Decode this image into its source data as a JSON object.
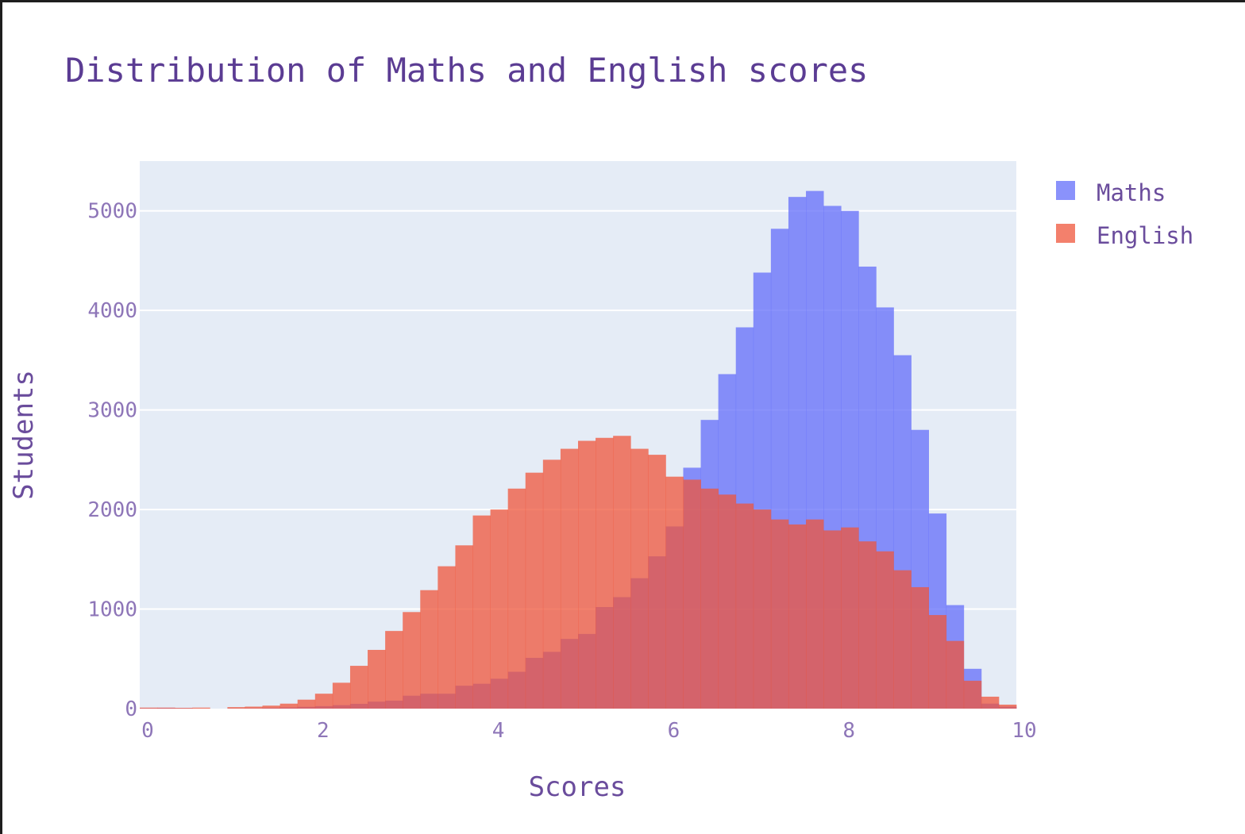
{
  "chart_data": {
    "type": "histogram",
    "title": "Distribution of Maths and English scores",
    "xlabel": "Scores",
    "ylabel": "Students",
    "xlim": [
      0,
      10
    ],
    "ylim": [
      0,
      5500
    ],
    "x_ticks": [
      "0",
      "2",
      "4",
      "6",
      "8",
      "10"
    ],
    "x_tick_values": [
      0,
      2,
      4,
      6,
      8,
      10
    ],
    "y_ticks": [
      "0",
      "1000",
      "2000",
      "3000",
      "4000",
      "5000"
    ],
    "y_tick_values": [
      0,
      1000,
      2000,
      3000,
      4000,
      5000
    ],
    "bin_width": 0.2,
    "bin_starts": [
      0,
      0.2,
      0.4,
      0.6,
      0.8,
      1.0,
      1.2,
      1.4,
      1.6,
      1.8,
      2.0,
      2.2,
      2.4,
      2.6,
      2.8,
      3.0,
      3.2,
      3.4,
      3.6,
      3.8,
      4.0,
      4.2,
      4.4,
      4.6,
      4.8,
      5.0,
      5.2,
      5.4,
      5.6,
      5.8,
      6.0,
      6.2,
      6.4,
      6.6,
      6.8,
      7.0,
      7.2,
      7.4,
      7.6,
      7.8,
      8.0,
      8.2,
      8.4,
      8.6,
      8.8,
      9.0,
      9.2,
      9.4,
      9.6,
      9.8
    ],
    "grid": true,
    "barmode": "overlay",
    "legend_position": "top-right",
    "background": "#e5ecf6",
    "series": [
      {
        "name": "Maths",
        "color": "#636efa",
        "values": [
          5,
          8,
          5,
          0,
          0,
          2,
          4,
          8,
          12,
          18,
          25,
          35,
          48,
          70,
          80,
          130,
          150,
          150,
          230,
          250,
          300,
          370,
          510,
          570,
          700,
          750,
          1020,
          1120,
          1310,
          1530,
          1830,
          2420,
          2900,
          3360,
          3830,
          4380,
          4820,
          5140,
          5200,
          5050,
          5000,
          4440,
          4030,
          3550,
          2800,
          1960,
          1040,
          400,
          50,
          20
        ]
      },
      {
        "name": "English",
        "color": "#ef553b",
        "values": [
          10,
          10,
          8,
          10,
          0,
          15,
          20,
          30,
          50,
          90,
          150,
          260,
          430,
          590,
          780,
          970,
          1190,
          1430,
          1640,
          1940,
          2000,
          2210,
          2370,
          2500,
          2610,
          2690,
          2720,
          2740,
          2610,
          2550,
          2330,
          2300,
          2210,
          2150,
          2060,
          2000,
          1900,
          1850,
          1900,
          1790,
          1820,
          1680,
          1580,
          1390,
          1220,
          940,
          680,
          280,
          120,
          40
        ]
      }
    ]
  }
}
